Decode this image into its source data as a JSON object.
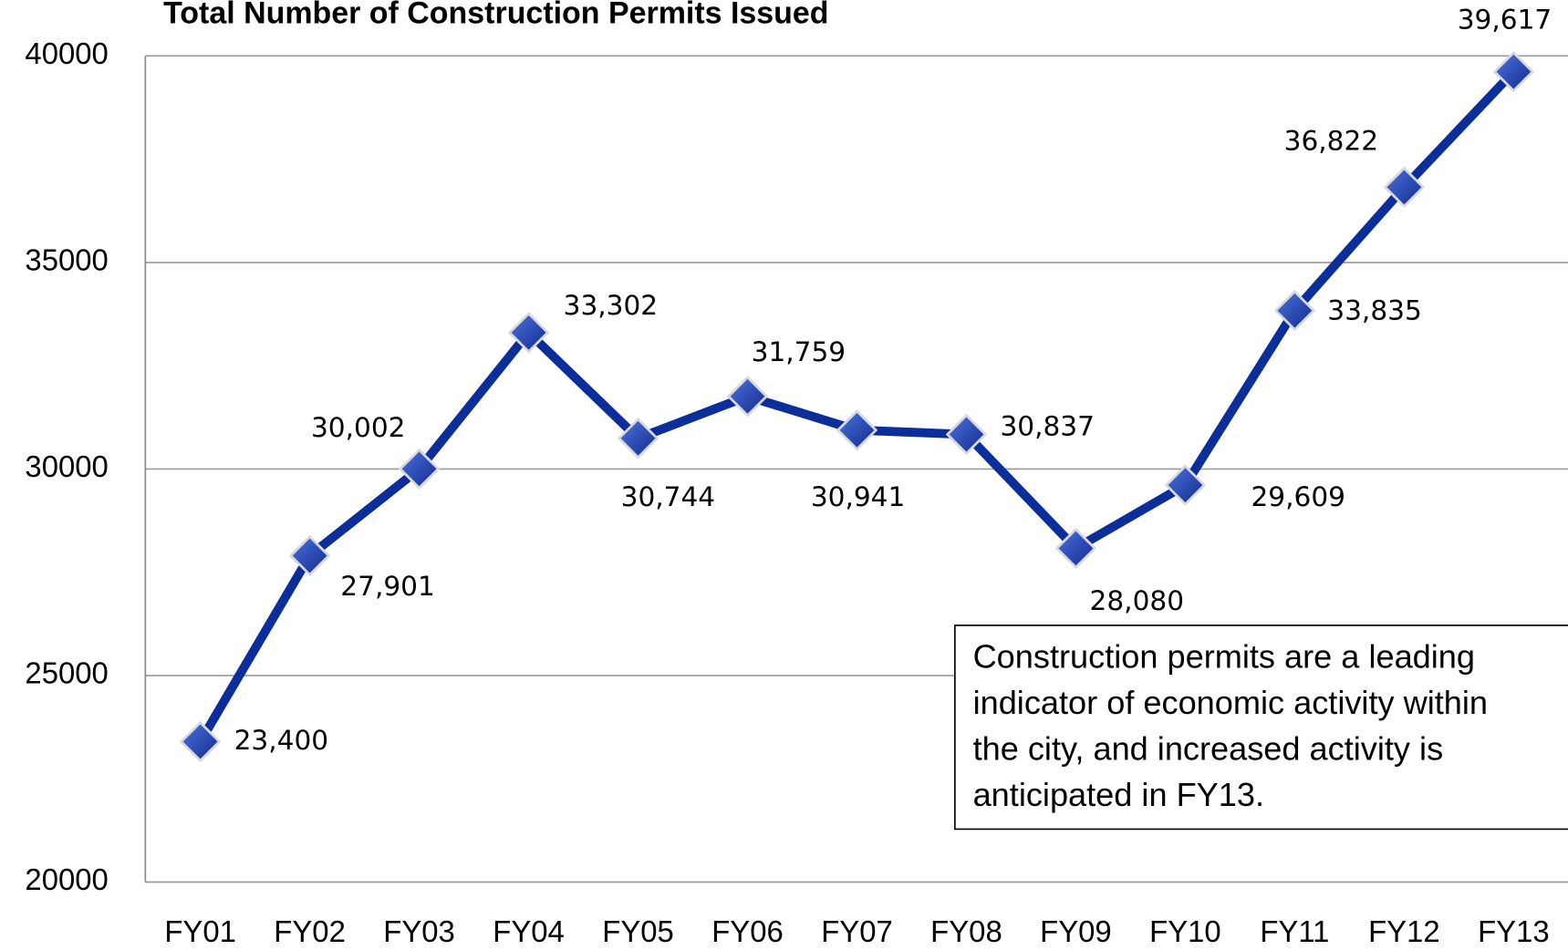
{
  "chart_data": {
    "type": "line",
    "title": "Total Number of Construction Permits Issued",
    "categories": [
      "FY01",
      "FY02",
      "FY03",
      "FY04",
      "FY05",
      "FY06",
      "FY07",
      "FY08",
      "FY09",
      "FY10",
      "FY11",
      "FY12",
      "FY13"
    ],
    "series": [
      {
        "color": "#0b2e9a",
        "values": [
          23400,
          27901,
          30002,
          33302,
          30744,
          31759,
          30941,
          30837,
          28080,
          29609,
          33835,
          36822,
          39617
        ],
        "value_labels": [
          "23,400",
          "27,901",
          "30,002",
          "33,302",
          "30,744",
          "31,759",
          "30,941",
          "30,837",
          "28,080",
          "29,609",
          "33,835",
          "36,822",
          "39,617"
        ]
      }
    ],
    "ylim": [
      20000,
      40000
    ],
    "yticks": [
      20000,
      25000,
      30000,
      35000,
      40000
    ],
    "grid": true,
    "annotation": [
      "Construction permits are a leading",
      "indicator of economic activity within",
      "the city, and increased activity is",
      "anticipated in FY13."
    ]
  }
}
